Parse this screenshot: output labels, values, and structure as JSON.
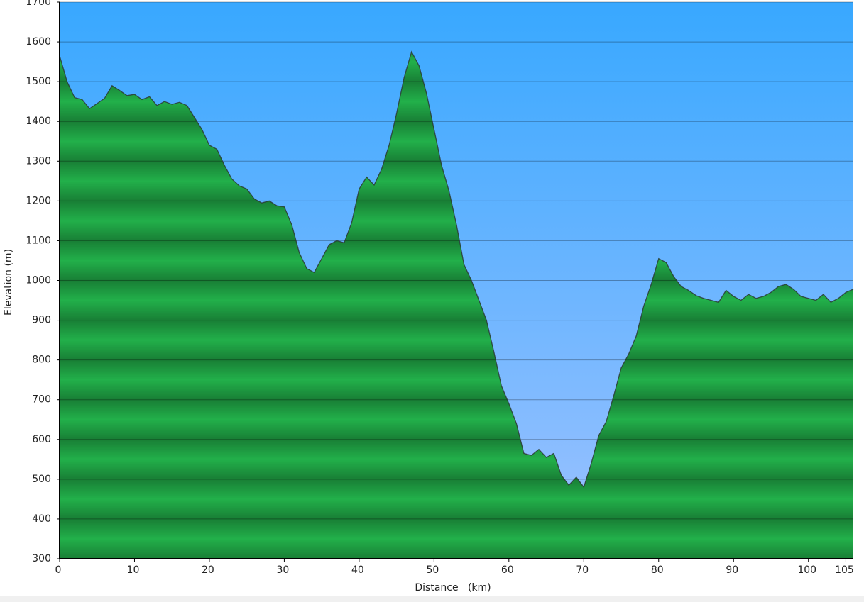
{
  "chart_data": {
    "type": "area",
    "x_label": "Distance   (km)",
    "y_label": "Elevation (m)",
    "x": [
      0,
      1,
      2,
      3,
      4,
      5,
      6,
      7,
      8,
      9,
      10,
      11,
      12,
      13,
      14,
      15,
      16,
      17,
      18,
      19,
      20,
      21,
      22,
      23,
      24,
      25,
      26,
      27,
      28,
      29,
      30,
      31,
      32,
      33,
      34,
      35,
      36,
      37,
      38,
      39,
      40,
      41,
      42,
      43,
      44,
      45,
      46,
      47,
      48,
      49,
      50,
      51,
      52,
      53,
      54,
      55,
      56,
      57,
      58,
      59,
      60,
      61,
      62,
      63,
      64,
      65,
      66,
      67,
      68,
      69,
      70,
      71,
      72,
      73,
      74,
      75,
      76,
      77,
      78,
      79,
      80,
      81,
      82,
      83,
      84,
      85,
      86,
      87,
      88,
      89,
      90,
      91,
      92,
      93,
      94,
      95,
      96,
      97,
      98,
      99,
      100,
      101,
      102,
      103,
      104,
      105,
      106
    ],
    "values": [
      1565,
      1500,
      1460,
      1455,
      1432,
      1445,
      1458,
      1490,
      1478,
      1465,
      1468,
      1455,
      1462,
      1440,
      1450,
      1443,
      1448,
      1440,
      1410,
      1380,
      1340,
      1330,
      1290,
      1255,
      1238,
      1230,
      1205,
      1195,
      1200,
      1188,
      1185,
      1140,
      1070,
      1030,
      1020,
      1055,
      1090,
      1100,
      1095,
      1145,
      1230,
      1260,
      1240,
      1280,
      1340,
      1420,
      1510,
      1575,
      1540,
      1470,
      1380,
      1290,
      1225,
      1140,
      1040,
      1000,
      950,
      900,
      820,
      735,
      690,
      640,
      565,
      560,
      575,
      555,
      565,
      510,
      485,
      505,
      480,
      540,
      610,
      645,
      710,
      780,
      815,
      860,
      935,
      990,
      1055,
      1045,
      1010,
      985,
      975,
      962,
      955,
      950,
      945,
      975,
      960,
      950,
      965,
      955,
      960,
      970,
      985,
      990,
      978,
      960,
      955,
      950,
      965,
      945,
      955,
      970,
      978
    ],
    "color": "#22b04a",
    "line_color": "#2a3a34",
    "sky_colors": [
      "#38a8ff",
      "#9ec2ff"
    ],
    "xlim": [
      0,
      106
    ],
    "ylim": [
      300,
      1700
    ],
    "xticks": [
      0,
      10,
      20,
      30,
      40,
      50,
      60,
      70,
      80,
      90,
      100,
      105
    ],
    "yticks": [
      300,
      400,
      500,
      600,
      700,
      800,
      900,
      1000,
      1100,
      1200,
      1300,
      1400,
      1500,
      1600,
      1700
    ],
    "grid": true
  }
}
